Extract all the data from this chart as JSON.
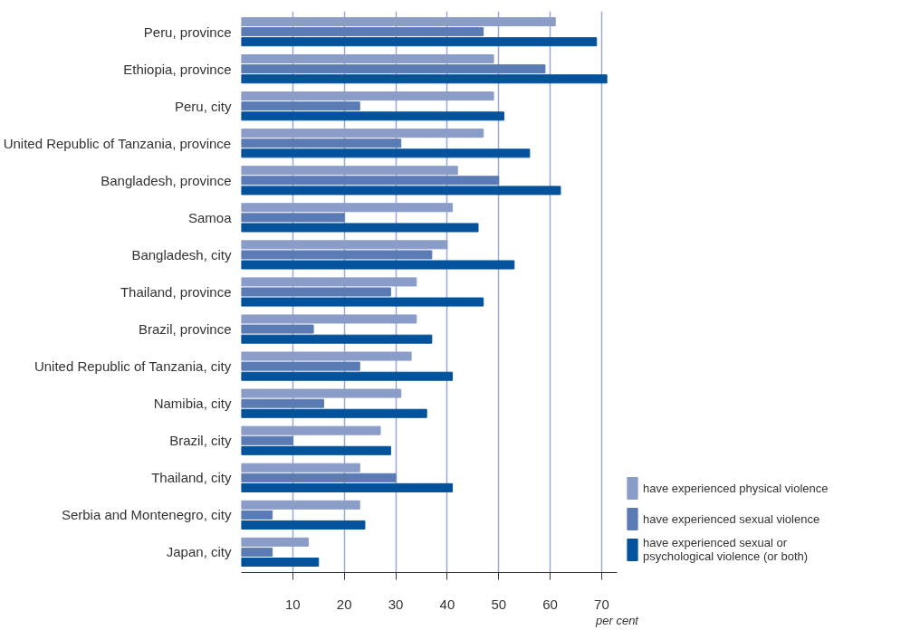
{
  "chart_data": {
    "type": "bar",
    "orientation": "horizontal",
    "xlabel": "per cent",
    "categories": [
      "Peru, province",
      "Ethiopia, province",
      "Peru, city",
      "United Republic of Tanzania, province",
      "Bangladesh, province",
      "Samoa",
      "Bangladesh, city",
      "Thailand, province",
      "Brazil, province",
      "United Republic of Tanzania, city",
      "Namibia, city",
      "Brazil, city",
      "Thailand, city",
      "Serbia and Montenegro, city",
      "Japan, city"
    ],
    "series": [
      {
        "name": "have experienced physical violence",
        "color": "#8a9cc8",
        "values": [
          61,
          49,
          49,
          47,
          42,
          41,
          40,
          34,
          34,
          33,
          31,
          27,
          23,
          23,
          13
        ]
      },
      {
        "name": "have experienced sexual violence",
        "color": "#5b7bb5",
        "values": [
          47,
          59,
          23,
          31,
          50,
          20,
          37,
          29,
          14,
          23,
          16,
          10,
          30,
          6,
          6
        ]
      },
      {
        "name": "have experienced sexual or psychological violence (or both)",
        "color": "#03529c",
        "values": [
          69,
          71,
          51,
          56,
          62,
          46,
          53,
          47,
          37,
          41,
          36,
          29,
          41,
          24,
          15
        ]
      }
    ],
    "xlim": [
      0,
      73
    ],
    "xticks": [
      10,
      20,
      30,
      40,
      50,
      60,
      70
    ],
    "grid": "x",
    "legend": "bottom right"
  }
}
